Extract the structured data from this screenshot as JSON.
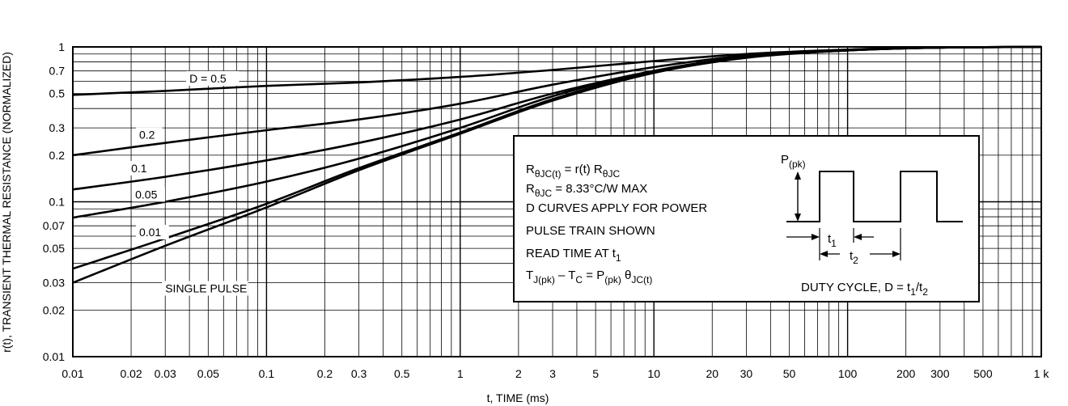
{
  "chart_data": {
    "type": "line",
    "xlabel": "t, TIME (ms)",
    "ylabel": "r(t), TRANSIENT THERMAL RESISTANCE (NORMALIZED)",
    "x_scale": "log",
    "y_scale": "log",
    "xlim": [
      0.01,
      1000
    ],
    "ylim": [
      0.01,
      1
    ],
    "grid": true,
    "x_ticks": [
      {
        "value": 0.01,
        "label": "0.01"
      },
      {
        "value": 0.02,
        "label": "0.02"
      },
      {
        "value": 0.03,
        "label": "0.03"
      },
      {
        "value": 0.05,
        "label": "0.05"
      },
      {
        "value": 0.1,
        "label": "0.1"
      },
      {
        "value": 0.2,
        "label": "0.2"
      },
      {
        "value": 0.3,
        "label": "0.3"
      },
      {
        "value": 0.5,
        "label": "0.5"
      },
      {
        "value": 1,
        "label": "1"
      },
      {
        "value": 2,
        "label": "2"
      },
      {
        "value": 3,
        "label": "3"
      },
      {
        "value": 5,
        "label": "5"
      },
      {
        "value": 10,
        "label": "10"
      },
      {
        "value": 20,
        "label": "20"
      },
      {
        "value": 30,
        "label": "30"
      },
      {
        "value": 50,
        "label": "50"
      },
      {
        "value": 100,
        "label": "100"
      },
      {
        "value": 200,
        "label": "200"
      },
      {
        "value": 300,
        "label": "300"
      },
      {
        "value": 500,
        "label": "500"
      },
      {
        "value": 1000,
        "label": "1 k"
      }
    ],
    "y_ticks": [
      {
        "value": 0.01,
        "label": "0.01"
      },
      {
        "value": 0.02,
        "label": "0.02"
      },
      {
        "value": 0.03,
        "label": "0.03"
      },
      {
        "value": 0.05,
        "label": "0.05"
      },
      {
        "value": 0.07,
        "label": "0.07"
      },
      {
        "value": 0.1,
        "label": "0.1"
      },
      {
        "value": 0.2,
        "label": "0.2"
      },
      {
        "value": 0.3,
        "label": "0.3"
      },
      {
        "value": 0.5,
        "label": "0.5"
      },
      {
        "value": 0.7,
        "label": "0.7"
      },
      {
        "value": 1,
        "label": "1"
      }
    ],
    "series": [
      {
        "name": "D = 0.5",
        "label_at": [
          0.04,
          0.59
        ],
        "points": [
          [
            0.01,
            0.49
          ],
          [
            0.03,
            0.52
          ],
          [
            0.1,
            0.56
          ],
          [
            0.3,
            0.59
          ],
          [
            1,
            0.64
          ],
          [
            3,
            0.71
          ],
          [
            10,
            0.81
          ],
          [
            30,
            0.9
          ],
          [
            100,
            0.96
          ],
          [
            300,
            0.99
          ],
          [
            1000,
            1.0
          ]
        ]
      },
      {
        "name": "0.2",
        "label_at": [
          0.022,
          0.255
        ],
        "points": [
          [
            0.01,
            0.2
          ],
          [
            0.03,
            0.24
          ],
          [
            0.1,
            0.29
          ],
          [
            0.3,
            0.34
          ],
          [
            1,
            0.43
          ],
          [
            3,
            0.57
          ],
          [
            10,
            0.74
          ],
          [
            30,
            0.88
          ],
          [
            100,
            0.96
          ],
          [
            300,
            0.99
          ],
          [
            1000,
            1.0
          ]
        ]
      },
      {
        "name": "0.1",
        "label_at": [
          0.02,
          0.155
        ],
        "points": [
          [
            0.01,
            0.12
          ],
          [
            0.03,
            0.145
          ],
          [
            0.1,
            0.185
          ],
          [
            0.3,
            0.24
          ],
          [
            1,
            0.34
          ],
          [
            3,
            0.5
          ],
          [
            10,
            0.7
          ],
          [
            30,
            0.86
          ],
          [
            100,
            0.95
          ],
          [
            300,
            0.99
          ],
          [
            1000,
            1.0
          ]
        ]
      },
      {
        "name": "0.05",
        "label_at": [
          0.021,
          0.105
        ],
        "points": [
          [
            0.01,
            0.079
          ],
          [
            0.03,
            0.1
          ],
          [
            0.1,
            0.135
          ],
          [
            0.3,
            0.19
          ],
          [
            1,
            0.3
          ],
          [
            3,
            0.48
          ],
          [
            10,
            0.7
          ],
          [
            30,
            0.86
          ],
          [
            100,
            0.95
          ],
          [
            300,
            0.99
          ],
          [
            1000,
            1.0
          ]
        ]
      },
      {
        "name": "0.01",
        "label_at": [
          0.022,
          0.06
        ],
        "points": [
          [
            0.01,
            0.037
          ],
          [
            0.03,
            0.058
          ],
          [
            0.1,
            0.097
          ],
          [
            0.3,
            0.165
          ],
          [
            1,
            0.28
          ],
          [
            3,
            0.46
          ],
          [
            10,
            0.69
          ],
          [
            30,
            0.86
          ],
          [
            100,
            0.95
          ],
          [
            300,
            0.99
          ],
          [
            1000,
            1.0
          ]
        ]
      },
      {
        "name": "SINGLE PULSE",
        "label_at": [
          0.03,
          0.026
        ],
        "points": [
          [
            0.01,
            0.03
          ],
          [
            0.03,
            0.052
          ],
          [
            0.1,
            0.092
          ],
          [
            0.3,
            0.16
          ],
          [
            1,
            0.275
          ],
          [
            3,
            0.45
          ],
          [
            10,
            0.68
          ],
          [
            30,
            0.85
          ],
          [
            100,
            0.95
          ],
          [
            300,
            0.99
          ],
          [
            1000,
            1.0
          ]
        ]
      }
    ],
    "annotation": {
      "lines": [
        {
          "main": "R",
          "sub": "θJC(t)",
          "rest": " = r(t) R",
          "sub2": "θJC"
        },
        {
          "main": "R",
          "sub": "θJC",
          "rest": " = 8.33°C/W MAX"
        },
        {
          "main": "D CURVES APPLY FOR POWER"
        },
        {
          "main": "PULSE TRAIN SHOWN"
        },
        {
          "main": "READ TIME AT t",
          "sub": "1"
        },
        {
          "main": "T",
          "sub": "J(pk)",
          "rest": " – T",
          "sub2": "C",
          "rest2": " = P",
          "sub3": "(pk)",
          "rest3": " θ",
          "sub4": "JC(t)"
        }
      ],
      "pulse_label": {
        "main": "P",
        "sub": "(pk)"
      },
      "t1_label": {
        "main": "t",
        "sub": "1"
      },
      "t2_label": {
        "main": "t",
        "sub": "2"
      },
      "duty_cycle": {
        "main": "DUTY CYCLE, D = t",
        "sub": "1",
        "mid": "/t",
        "sub2": "2"
      }
    }
  }
}
